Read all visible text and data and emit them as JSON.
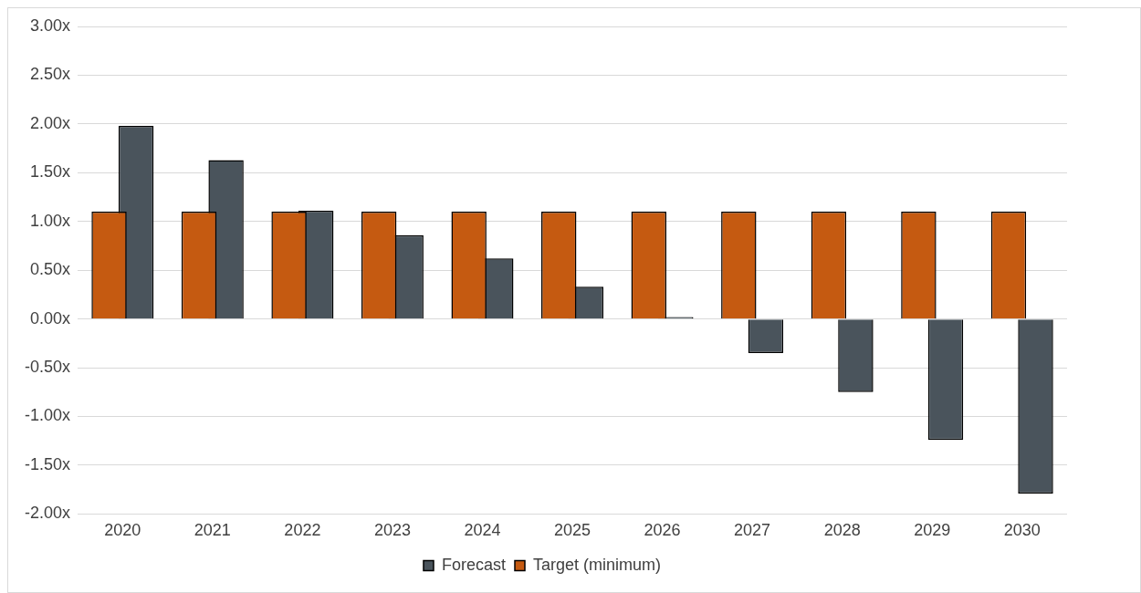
{
  "chart_data": {
    "type": "bar",
    "categories": [
      "2020",
      "2021",
      "2022",
      "2023",
      "2024",
      "2025",
      "2026",
      "2027",
      "2028",
      "2029",
      "2030"
    ],
    "series": [
      {
        "name": "Forecast",
        "color": "#4a545c",
        "values": [
          1.98,
          1.63,
          1.11,
          0.86,
          0.62,
          0.33,
          0.02,
          -0.35,
          -0.75,
          -1.24,
          -1.79
        ]
      },
      {
        "name": "Target (minimum)",
        "color": "#c55a11",
        "values": [
          1.1,
          1.1,
          1.1,
          1.1,
          1.1,
          1.1,
          1.1,
          1.1,
          1.1,
          1.1,
          1.1
        ]
      }
    ],
    "ylim": [
      -2,
      3
    ],
    "yticks": [
      {
        "value": -2,
        "label": "-2.00x"
      },
      {
        "value": -1.5,
        "label": "-1.50x"
      },
      {
        "value": -1,
        "label": "-1.00x"
      },
      {
        "value": -0.5,
        "label": "-0.50x"
      },
      {
        "value": 0,
        "label": "0.00x"
      },
      {
        "value": 0.5,
        "label": "0.50x"
      },
      {
        "value": 1,
        "label": "1.00x"
      },
      {
        "value": 1.5,
        "label": "1.50x"
      },
      {
        "value": 2,
        "label": "2.00x"
      },
      {
        "value": 2.5,
        "label": "2.50x"
      },
      {
        "value": 3,
        "label": "3.00x"
      }
    ],
    "grid": "y",
    "legend": "bottom"
  }
}
